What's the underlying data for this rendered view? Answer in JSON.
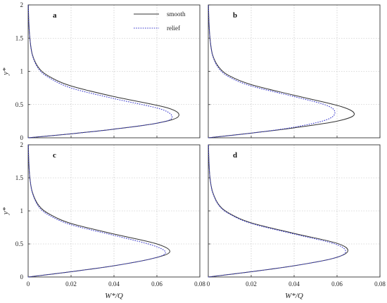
{
  "chart_data": {
    "type": "line",
    "xlabel": "W*/Q",
    "ylabel": "y*",
    "xlim": [
      0,
      0.08
    ],
    "ylim": [
      0,
      2
    ],
    "xticks": [
      "0",
      "0.02",
      "0.04",
      "0.06",
      "0.08"
    ],
    "yticks": [
      "0",
      "0.5",
      "1",
      "1.5",
      "2"
    ],
    "grid": true,
    "legend": {
      "position": "top-right of panel a",
      "entries": [
        {
          "label": "smooth",
          "style": "solid",
          "color": "#333333"
        },
        {
          "label": "relief",
          "style": "dotted",
          "color": "#3a3acc"
        }
      ]
    },
    "panels": [
      {
        "label": "a",
        "series": [
          {
            "name": "smooth",
            "x": [
              0,
              0.02,
              0.04,
              0.06,
              0.07,
              0.065,
              0.04,
              0.02,
              0.01,
              0.005,
              0.002,
              0.0008,
              0.0003,
              0.0001
            ],
            "y": [
              0,
              0.06,
              0.13,
              0.22,
              0.32,
              0.45,
              0.62,
              0.78,
              0.92,
              1.05,
              1.25,
              1.5,
              1.75,
              2.0
            ]
          },
          {
            "name": "relief",
            "x": [
              0,
              0.02,
              0.04,
              0.06,
              0.067,
              0.062,
              0.04,
              0.02,
              0.01,
              0.005,
              0.002,
              0.0008,
              0.0003,
              0.0001
            ],
            "y": [
              0,
              0.06,
              0.13,
              0.22,
              0.3,
              0.43,
              0.59,
              0.75,
              0.9,
              1.03,
              1.24,
              1.5,
              1.75,
              2.0
            ]
          }
        ]
      },
      {
        "label": "b",
        "series": [
          {
            "name": "smooth",
            "x": [
              0,
              0.02,
              0.04,
              0.06,
              0.068,
              0.062,
              0.04,
              0.02,
              0.01,
              0.005,
              0.002,
              0.0008,
              0.0003,
              0.0001
            ],
            "y": [
              0,
              0.07,
              0.15,
              0.25,
              0.35,
              0.47,
              0.64,
              0.8,
              0.93,
              1.06,
              1.25,
              1.5,
              1.75,
              2.0
            ]
          },
          {
            "name": "relief",
            "x": [
              0,
              0.02,
              0.04,
              0.055,
              0.059,
              0.055,
              0.04,
              0.02,
              0.01,
              0.005,
              0.002,
              0.0008,
              0.0003,
              0.0001
            ],
            "y": [
              0,
              0.07,
              0.16,
              0.27,
              0.38,
              0.49,
              0.62,
              0.78,
              0.91,
              1.04,
              1.24,
              1.5,
              1.75,
              2.0
            ]
          }
        ]
      },
      {
        "label": "c",
        "series": [
          {
            "name": "smooth",
            "x": [
              0,
              0.02,
              0.04,
              0.058,
              0.066,
              0.06,
              0.04,
              0.02,
              0.01,
              0.005,
              0.002,
              0.0008,
              0.0003,
              0.0001
            ],
            "y": [
              0,
              0.08,
              0.17,
              0.28,
              0.38,
              0.5,
              0.65,
              0.81,
              0.95,
              1.08,
              1.28,
              1.5,
              1.75,
              2.0
            ]
          },
          {
            "name": "relief",
            "x": [
              0,
              0.02,
              0.04,
              0.058,
              0.064,
              0.058,
              0.04,
              0.02,
              0.01,
              0.005,
              0.002,
              0.0008,
              0.0003,
              0.0001
            ],
            "y": [
              0,
              0.08,
              0.17,
              0.28,
              0.37,
              0.48,
              0.63,
              0.79,
              0.93,
              1.06,
              1.27,
              1.5,
              1.75,
              2.0
            ]
          }
        ]
      },
      {
        "label": "d",
        "series": [
          {
            "name": "smooth",
            "x": [
              0,
              0.02,
              0.04,
              0.058,
              0.065,
              0.06,
              0.04,
              0.02,
              0.01,
              0.005,
              0.002,
              0.0008,
              0.0003,
              0.0001
            ],
            "y": [
              0,
              0.08,
              0.17,
              0.28,
              0.39,
              0.51,
              0.66,
              0.82,
              0.96,
              1.09,
              1.29,
              1.5,
              1.75,
              2.0
            ]
          },
          {
            "name": "relief",
            "x": [
              0,
              0.02,
              0.04,
              0.058,
              0.064,
              0.059,
              0.04,
              0.02,
              0.01,
              0.005,
              0.002,
              0.0008,
              0.0003,
              0.0001
            ],
            "y": [
              0,
              0.08,
              0.17,
              0.28,
              0.38,
              0.5,
              0.65,
              0.81,
              0.95,
              1.08,
              1.28,
              1.5,
              1.75,
              2.0
            ]
          }
        ]
      }
    ]
  }
}
